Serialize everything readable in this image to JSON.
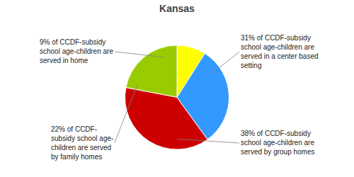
{
  "chart_data": {
    "type": "pie",
    "title": "Kansas",
    "values": [
      9,
      22,
      38,
      31
    ],
    "colors": [
      "#ffff00",
      "#99cc00",
      "#cc0000",
      "#3399ff"
    ],
    "annotations": [
      "9% of CCDF-subsidy\nschool age-children are\nserved in home",
      "22% of CCDF-\nsubsidy school age-\nchildren are served\nby family homes",
      "38% of CCDF-subsidy\nschool age-children are\nserved by group homes",
      "31% of CCDF-subsidy\nschool age-children are\nserved in a center based\nsetting"
    ]
  }
}
